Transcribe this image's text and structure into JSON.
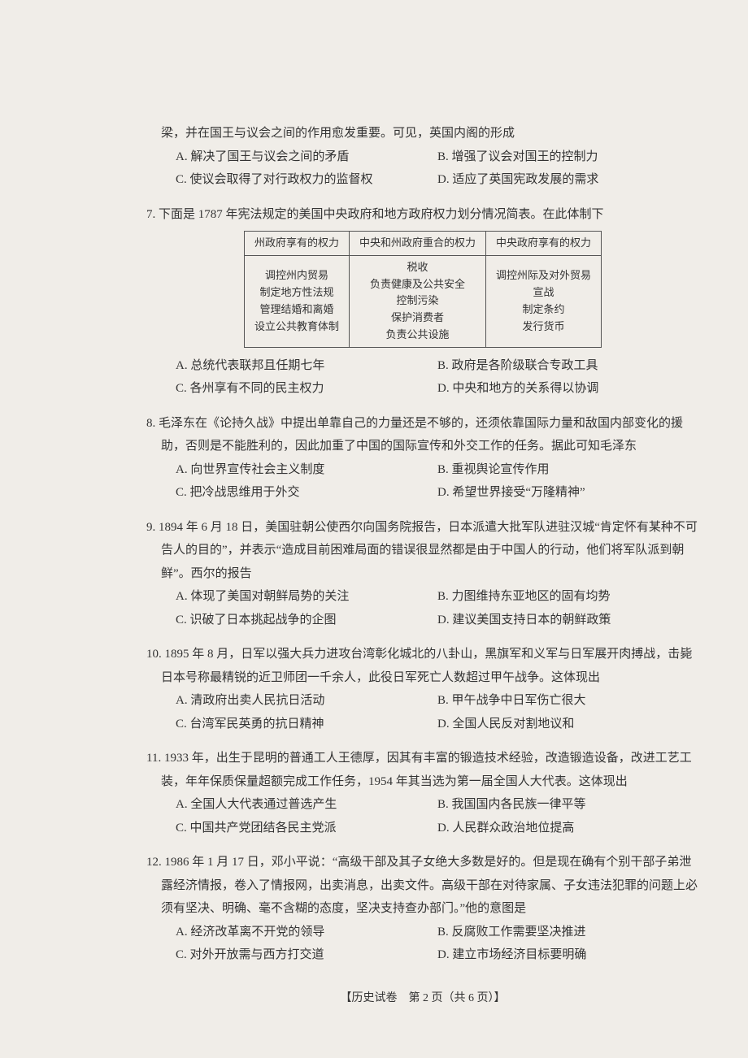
{
  "q6": {
    "stem_cont": "梁，并在国王与议会之间的作用愈发重要。可见，英国内阁的形成",
    "A": "A. 解决了国王与议会之间的矛盾",
    "B": "B. 增强了议会对国王的控制力",
    "C": "C. 使议会取得了对行政权力的监督权",
    "D": "D. 适应了英国宪政发展的需求"
  },
  "q7": {
    "stem": "7. 下面是 1787 年宪法规定的美国中央政府和地方政府权力划分情况简表。在此体制下",
    "table": {
      "headers": [
        "州政府享有的权力",
        "中央和州政府重合的权力",
        "中央政府享有的权力"
      ],
      "col1": "调控州内贸易\n制定地方性法规\n管理结婚和离婚\n设立公共教育体制",
      "col2": "税收\n负责健康及公共安全\n控制污染\n保护消费者\n负责公共设施",
      "col3": "调控州际及对外贸易\n宣战\n制定条约\n发行货币"
    },
    "A": "A. 总统代表联邦且任期七年",
    "B": "B. 政府是各阶级联合专政工具",
    "C": "C. 各州享有不同的民主权力",
    "D": "D. 中央和地方的关系得以协调"
  },
  "q8": {
    "stem": "8. 毛泽东在《论持久战》中提出单靠自己的力量还是不够的，还须依靠国际力量和敌国内部变化的援助，否则是不能胜利的，因此加重了中国的国际宣传和外交工作的任务。据此可知毛泽东",
    "A": "A. 向世界宣传社会主义制度",
    "B": "B. 重视舆论宣传作用",
    "C": "C. 把冷战思维用于外交",
    "D": "D. 希望世界接受“万隆精神”"
  },
  "q9": {
    "stem": "9. 1894 年 6 月 18 日，美国驻朝公使西尔向国务院报告，日本派遣大批军队进驻汉城“肯定怀有某种不可告人的目的”，并表示“造成目前困难局面的错误很显然都是由于中国人的行动，他们将军队派到朝鲜”。西尔的报告",
    "A": "A. 体现了美国对朝鲜局势的关注",
    "B": "B. 力图维持东亚地区的固有均势",
    "C": "C. 识破了日本挑起战争的企图",
    "D": "D. 建议美国支持日本的朝鲜政策"
  },
  "q10": {
    "stem": "10. 1895 年 8 月，日军以强大兵力进攻台湾彰化城北的八卦山，黑旗军和义军与日军展开肉搏战，击毙日本号称最精锐的近卫师团一千余人，此役日军死亡人数超过甲午战争。这体现出",
    "A": "A. 清政府出卖人民抗日活动",
    "B": "B. 甲午战争中日军伤亡很大",
    "C": "C. 台湾军民英勇的抗日精神",
    "D": "D. 全国人民反对割地议和"
  },
  "q11": {
    "stem": "11. 1933 年，出生于昆明的普通工人王德厚，因其有丰富的锻造技术经验，改造锻造设备，改进工艺工装，年年保质保量超额完成工作任务，1954 年其当选为第一届全国人大代表。这体现出",
    "A": "A. 全国人大代表通过普选产生",
    "B": "B. 我国国内各民族一律平等",
    "C": "C. 中国共产党团结各民主党派",
    "D": "D. 人民群众政治地位提高"
  },
  "q12": {
    "stem": "12. 1986 年 1 月 17 日，邓小平说：“高级干部及其子女绝大多数是好的。但是现在确有个别干部子弟泄露经济情报，卷入了情报网，出卖消息，出卖文件。高级干部在对待家属、子女违法犯罪的问题上必须有坚决、明确、毫不含糊的态度，坚决支持查办部门。”他的意图是",
    "A": "A. 经济改革离不开党的领导",
    "B": "B. 反腐败工作需要坚决推进",
    "C": "C. 对外开放需与西方打交道",
    "D": "D. 建立市场经济目标要明确"
  },
  "footer": "【历史试卷　第 2 页（共 6 页）】"
}
